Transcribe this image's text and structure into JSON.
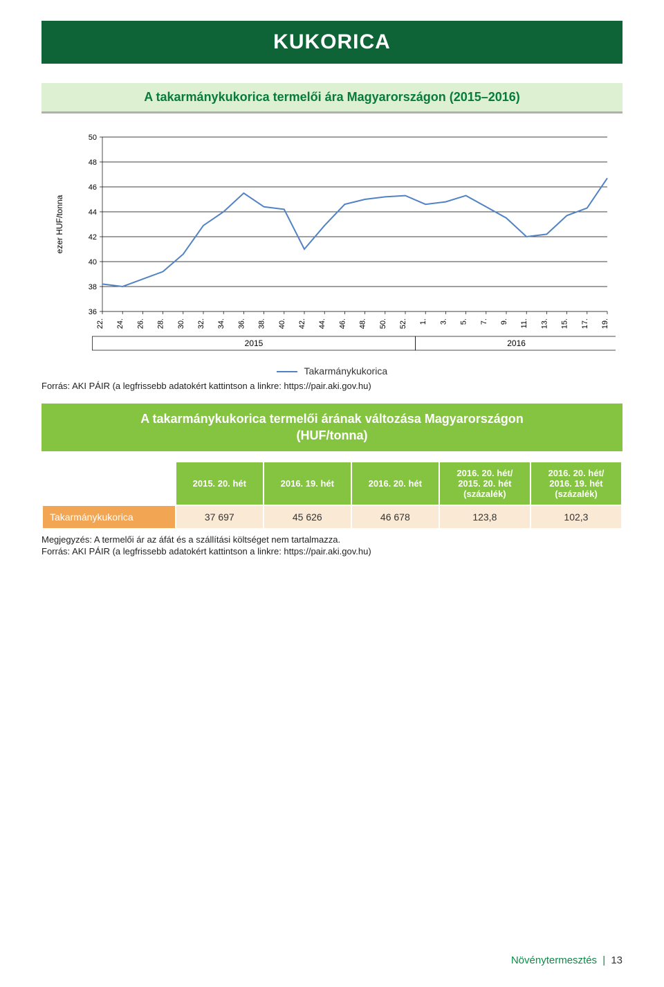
{
  "header": {
    "title": "KUKORICA"
  },
  "subtitle": {
    "text": "A takarmánykukorica termelői ára Magyarországon (2015–2016)"
  },
  "chart": {
    "type": "line",
    "y_axis_label": "ezer HUF/tonna",
    "ylim": [
      36,
      50
    ],
    "ytick_step": 2,
    "y_ticks": [
      36,
      38,
      40,
      42,
      44,
      46,
      48,
      50
    ],
    "x_ticks": [
      "22.",
      "24.",
      "26.",
      "28.",
      "30.",
      "32.",
      "34.",
      "36.",
      "38.",
      "40.",
      "42.",
      "44.",
      "46.",
      "48.",
      "50.",
      "52.",
      "1.",
      "3.",
      "5.",
      "7.",
      "9.",
      "11.",
      "13.",
      "15.",
      "17.",
      "19."
    ],
    "year_labels": [
      "2015",
      "2016"
    ],
    "year_split_index": 16,
    "series": {
      "name": "Takarmánykukorica",
      "color": "#5082c4",
      "line_width": 2,
      "values": [
        38.2,
        38.0,
        38.6,
        39.2,
        40.6,
        42.9,
        44.0,
        45.5,
        44.4,
        44.2,
        41.0,
        42.9,
        44.6,
        45.0,
        45.2,
        45.3,
        44.6,
        44.8,
        45.3,
        44.4,
        43.5,
        42.0,
        42.2,
        43.7,
        44.3,
        46.7
      ]
    },
    "grid_color": "#000000",
    "axis_color": "#000000",
    "background_color": "#ffffff",
    "label_fontsize": 12,
    "tick_fontsize": 11
  },
  "legend": {
    "label": "Takarmánykukorica"
  },
  "source1": "Forrás: AKI PÁIR (a legfrissebb adatokért kattintson a linkre: https://pair.aki.gov.hu)",
  "table_title": {
    "line1": "A takarmánykukorica termelői árának változása Magyarországon",
    "line2": "(HUF/tonna)"
  },
  "table": {
    "columns": [
      "2015. 20. hét",
      "2016. 19. hét",
      "2016. 20. hét",
      "2016. 20. hét/\n2015. 20. hét\n(százalék)",
      "2016. 20. hét/\n2016. 19. hét\n(százalék)"
    ],
    "rows": [
      {
        "label": "Takarmánykukorica",
        "values": [
          "37 697",
          "45 626",
          "46 678",
          "123,8",
          "102,3"
        ]
      }
    ],
    "header_bg": "#85c441",
    "header_color": "#ffffff",
    "rowlabel_bg": "#f2a552",
    "value_bg": "#f9e9d5"
  },
  "note": {
    "line1": "Megjegyzés: A termelői ár az áfát és a szállítási költséget nem tartalmazza.",
    "line2": "Forrás: AKI PÁIR (a legfrissebb adatokért kattintson a linkre: https://pair.aki.gov.hu)"
  },
  "footer": {
    "section": "Növénytermesztés",
    "page": "13"
  }
}
